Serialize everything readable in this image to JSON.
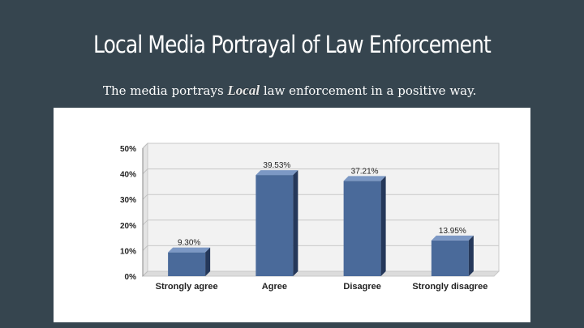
{
  "slide": {
    "title": "Local Media Portrayal of Law Enforcement",
    "subtitle_before": "The media portrays ",
    "subtitle_emphasis": "Local",
    "subtitle_after": " law enforcement in a positive way."
  },
  "chart_data": {
    "type": "bar",
    "categories": [
      "Strongly agree",
      "Agree",
      "Disagree",
      "Strongly disagree"
    ],
    "values": [
      9.3,
      39.53,
      37.21,
      13.95
    ],
    "data_labels": [
      "9.30%",
      "39.53%",
      "37.21%",
      "13.95%"
    ],
    "title": "",
    "xlabel": "",
    "ylabel": "",
    "ylim": [
      0,
      50
    ],
    "yticks": [
      0,
      10,
      20,
      30,
      40,
      50
    ],
    "ytick_labels": [
      "0%",
      "10%",
      "20%",
      "30%",
      "40%",
      "50%"
    ],
    "grid": true,
    "colors": {
      "bar_front": "#4a6a9a",
      "bar_top": "#7c98c4",
      "bar_side": "#25385a",
      "plot_bg": "#f2f2f2"
    }
  }
}
